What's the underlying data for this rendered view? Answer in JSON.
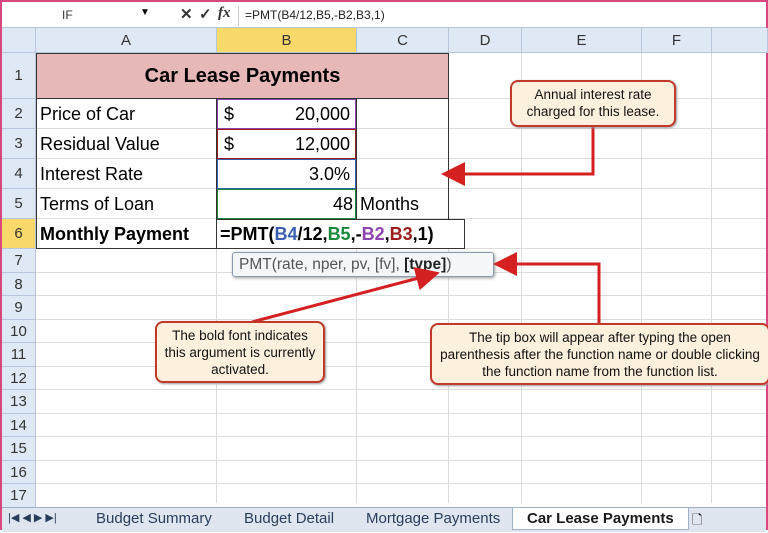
{
  "formula_bar": {
    "name_box": "IF",
    "cancel_icon": "✕",
    "enter_icon": "✓",
    "fx_label": "fx",
    "formula": "=PMT(B4/12,B5,-B2,B3,1)"
  },
  "columns": [
    "A",
    "B",
    "C",
    "D",
    "E",
    "F"
  ],
  "rows": [
    "1",
    "2",
    "3",
    "4",
    "5",
    "6",
    "7",
    "8",
    "9",
    "10",
    "11",
    "12",
    "13",
    "14",
    "15",
    "16",
    "17"
  ],
  "sheet": {
    "title": "Car Lease Payments",
    "labels": [
      "Price of Car",
      "Residual Value",
      "Interest Rate",
      "Terms of Loan",
      "Monthly Payment"
    ],
    "currency": "$",
    "price": "20,000",
    "residual": "12,000",
    "rate": "3.0%",
    "terms": "48",
    "months": "Months",
    "formula_parts": [
      {
        "t": "=PMT(",
        "c": "#000000"
      },
      {
        "t": "B4",
        "c": "#3a5fb0"
      },
      {
        "t": "/12,",
        "c": "#000000"
      },
      {
        "t": "B5",
        "c": "#1a8a3a"
      },
      {
        "t": ",-",
        "c": "#000000"
      },
      {
        "t": "B2",
        "c": "#8e44ad"
      },
      {
        "t": ",",
        "c": "#000000"
      },
      {
        "t": "B3",
        "c": "#9b1c1c"
      },
      {
        "t": ",1)",
        "c": "#000000"
      }
    ]
  },
  "tooltip": {
    "prefix": "PMT(rate, nper, pv, [fv], ",
    "bold": "[type]",
    "suffix": ")"
  },
  "callouts": {
    "interest": "Annual interest rate charged for this lease.",
    "bold": "The bold font indicates this argument is currently activated.",
    "tip": "The tip box will appear after typing the open parenthesis after the function name or double clicking the function name from the function list."
  },
  "tabs": [
    "Budget Summary",
    "Budget Detail",
    "Mortgage Payments",
    "Car Lease Payments"
  ],
  "active_tab": "Car Lease Payments",
  "colors": {
    "title_fill": "#e6b8b7",
    "header_fill": "#dfe9f5",
    "selected_col": "#f9d96a",
    "callout_border": "#c0392b"
  }
}
